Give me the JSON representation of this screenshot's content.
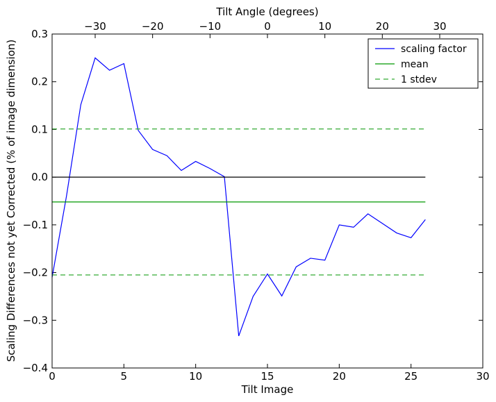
{
  "chart_data": {
    "type": "line",
    "title": "",
    "xlabel": "Tilt Image",
    "ylabel": "Scaling Differences not yet Corrected (% of image dimension)",
    "top_xlabel": "Tilt Angle (degrees)",
    "xlim": [
      0,
      30
    ],
    "ylim": [
      -0.4,
      0.3
    ],
    "top_xlim": [
      -37.5,
      37.5
    ],
    "xticks": [
      0,
      5,
      10,
      15,
      20,
      25,
      30
    ],
    "yticks": [
      -0.4,
      -0.3,
      -0.2,
      -0.1,
      0.0,
      0.1,
      0.2,
      0.3
    ],
    "top_xticks": [
      -30,
      -20,
      -10,
      0,
      10,
      20,
      30
    ],
    "xtick_labels": [
      "0",
      "5",
      "10",
      "15",
      "20",
      "25",
      "30"
    ],
    "ytick_labels": [
      "−0.4",
      "−0.3",
      "−0.2",
      "−0.1",
      "0.0",
      "0.1",
      "0.2",
      "0.3"
    ],
    "top_xtick_labels": [
      "−30",
      "−20",
      "−10",
      "0",
      "10",
      "20",
      "30"
    ],
    "grid": false,
    "legend_position": "top-right",
    "series": [
      {
        "name": "scaling factor",
        "color": "#0000ff",
        "style": "solid",
        "x": [
          0,
          1,
          2,
          3,
          4,
          5,
          6,
          7,
          8,
          9,
          10,
          11,
          12,
          13,
          14,
          15,
          16,
          17,
          18,
          19,
          20,
          21,
          22,
          23,
          24,
          25,
          26
        ],
        "y": [
          -0.21,
          -0.04,
          0.152,
          0.25,
          0.224,
          0.238,
          0.098,
          0.058,
          0.045,
          0.014,
          0.033,
          0.018,
          0.001,
          -0.333,
          -0.25,
          -0.203,
          -0.249,
          -0.188,
          -0.17,
          -0.174,
          -0.1,
          -0.105,
          -0.077,
          -0.097,
          -0.117,
          -0.127,
          -0.089
        ]
      },
      {
        "name": "mean",
        "color": "#009900",
        "style": "solid",
        "x": [
          0,
          26
        ],
        "y": [
          -0.052,
          -0.052
        ]
      },
      {
        "name": "1 stdev",
        "color": "#33aa33",
        "style": "dashed",
        "x": [
          0,
          26
        ],
        "y": [
          0.101,
          0.101
        ]
      },
      {
        "name": "",
        "color": "#33aa33",
        "style": "dashed",
        "x": [
          0,
          26
        ],
        "y": [
          -0.205,
          -0.205
        ]
      },
      {
        "name": "",
        "color": "#000000",
        "style": "solid",
        "x": [
          0,
          26
        ],
        "y": [
          0,
          0
        ]
      }
    ],
    "legend": [
      {
        "label": "scaling factor",
        "color": "#0000ff",
        "style": "solid"
      },
      {
        "label": "mean",
        "color": "#009900",
        "style": "solid"
      },
      {
        "label": "1 stdev",
        "color": "#33aa33",
        "style": "dashed"
      }
    ]
  }
}
